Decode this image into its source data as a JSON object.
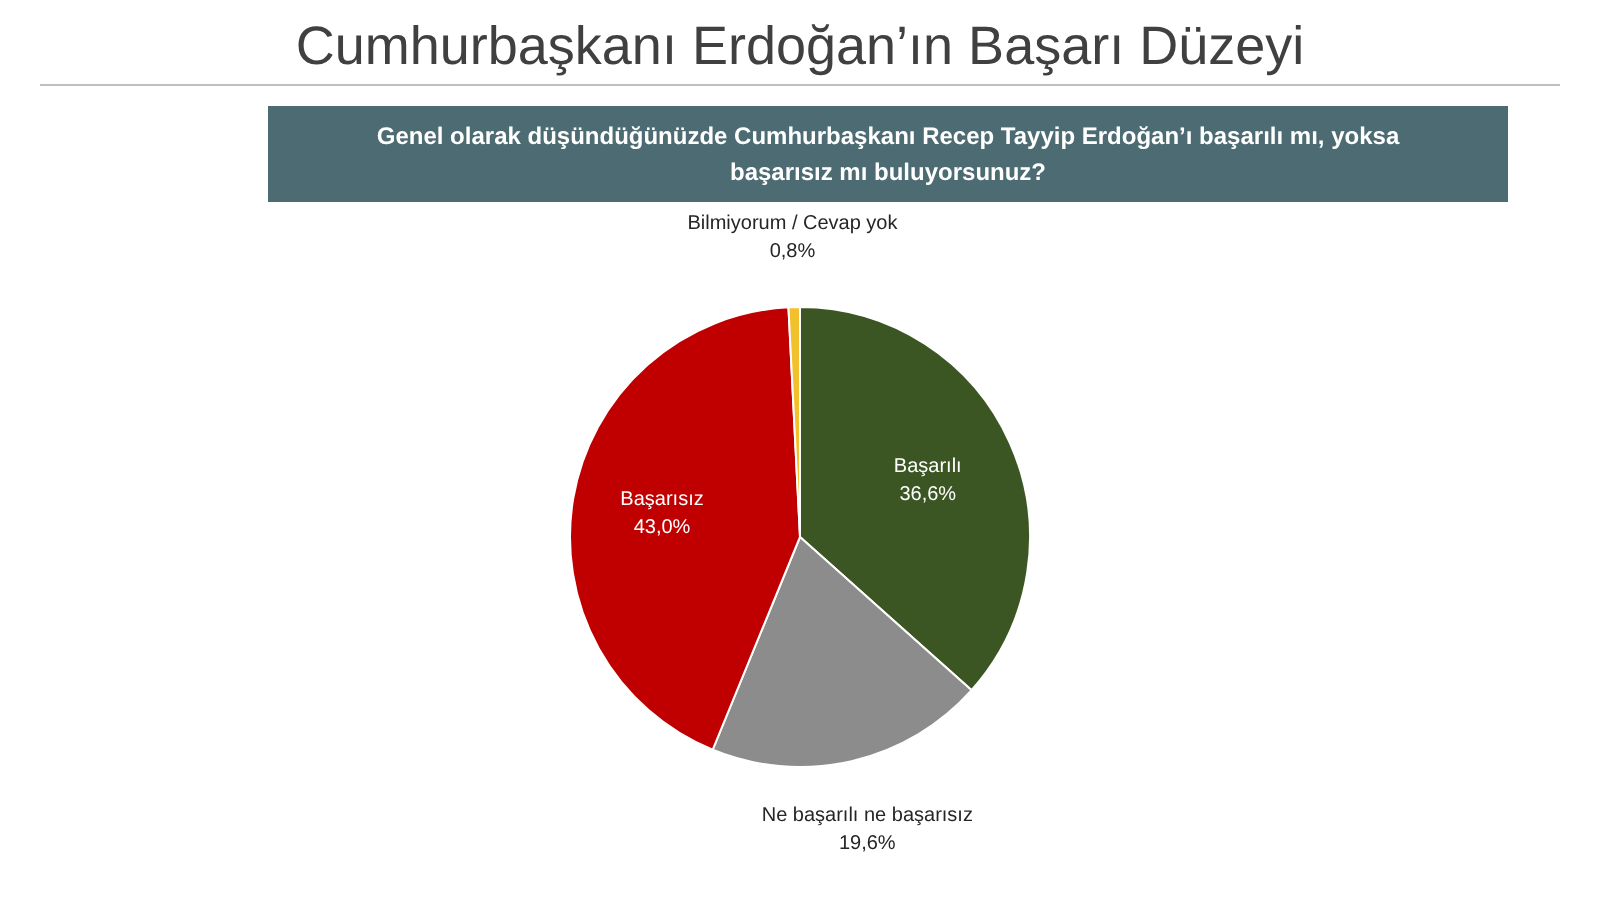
{
  "chart_data": {
    "type": "pie",
    "title": "Cumhurbaşkanı Erdoğan’ın Başarı Düzeyi",
    "subtitle": "Genel olarak düşündüğünüzde Cumhurbaşkanı Recep Tayyip Erdoğan’ı başarılı mı, yoksa başarısız mı buluyorsunuz?",
    "categories": [
      "Başarılı",
      "Ne başarılı ne başarısız",
      "Başarısız",
      "Bilmiyorum / Cevap yok"
    ],
    "values": [
      36.6,
      19.6,
      43.0,
      0.8
    ],
    "value_labels": [
      "36,6%",
      "19,6%",
      "43,0%",
      "0,8%"
    ],
    "colors": [
      "#3b5623",
      "#8c8c8c",
      "#c00000",
      "#f2c02c"
    ]
  }
}
